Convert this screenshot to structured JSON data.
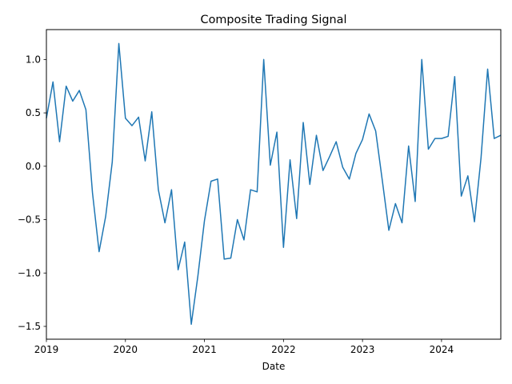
{
  "chart_data": {
    "type": "line",
    "title": "Composite Trading Signal",
    "xlabel": "Date",
    "ylabel": "",
    "x_tick_labels": [
      "2019",
      "2020",
      "2021",
      "2022",
      "2023",
      "2024"
    ],
    "y_ticks": [
      -1.5,
      -1.0,
      -0.5,
      0.0,
      0.5,
      1.0
    ],
    "y_tick_labels": [
      "−1.5",
      "−1.0",
      "−0.5",
      "0.0",
      "0.5",
      "1.0"
    ],
    "xlim": [
      "2019-01",
      "2024-10"
    ],
    "ylim": [
      -1.62,
      1.28
    ],
    "grid": false,
    "line_color": "#1f77b4",
    "x": [
      "2019-01",
      "2019-02",
      "2019-03",
      "2019-04",
      "2019-05",
      "2019-06",
      "2019-07",
      "2019-08",
      "2019-09",
      "2019-10",
      "2019-11",
      "2019-12",
      "2020-01",
      "2020-02",
      "2020-03",
      "2020-04",
      "2020-05",
      "2020-06",
      "2020-07",
      "2020-08",
      "2020-09",
      "2020-10",
      "2020-11",
      "2020-12",
      "2021-01",
      "2021-02",
      "2021-03",
      "2021-04",
      "2021-05",
      "2021-06",
      "2021-07",
      "2021-08",
      "2021-09",
      "2021-10",
      "2021-11",
      "2021-12",
      "2022-01",
      "2022-02",
      "2022-03",
      "2022-04",
      "2022-05",
      "2022-06",
      "2022-07",
      "2022-08",
      "2022-09",
      "2022-10",
      "2022-11",
      "2022-12",
      "2023-01",
      "2023-02",
      "2023-03",
      "2023-04",
      "2023-05",
      "2023-06",
      "2023-07",
      "2023-08",
      "2023-09",
      "2023-10",
      "2023-11",
      "2023-12",
      "2024-01",
      "2024-02",
      "2024-03",
      "2024-04",
      "2024-05",
      "2024-06",
      "2024-07",
      "2024-08",
      "2024-09",
      "2024-10"
    ],
    "values": [
      0.45,
      0.79,
      0.23,
      0.75,
      0.61,
      0.71,
      0.53,
      -0.25,
      -0.8,
      -0.47,
      0.04,
      1.15,
      0.45,
      0.38,
      0.46,
      0.05,
      0.51,
      -0.22,
      -0.53,
      -0.22,
      -0.97,
      -0.71,
      -1.48,
      -1.03,
      -0.51,
      -0.14,
      -0.12,
      -0.87,
      -0.86,
      -0.5,
      -0.69,
      -0.22,
      -0.24,
      1.0,
      0.01,
      0.32,
      -0.76,
      0.06,
      -0.49,
      0.41,
      -0.17,
      0.29,
      -0.04,
      0.09,
      0.23,
      -0.01,
      -0.12,
      0.12,
      0.25,
      0.49,
      0.33,
      -0.13,
      -0.6,
      -0.35,
      -0.53,
      0.19,
      -0.33,
      1.0,
      0.16,
      0.26,
      0.26,
      0.28,
      0.84,
      -0.28,
      -0.09,
      -0.52,
      0.08,
      0.91,
      0.26,
      0.29
    ]
  }
}
